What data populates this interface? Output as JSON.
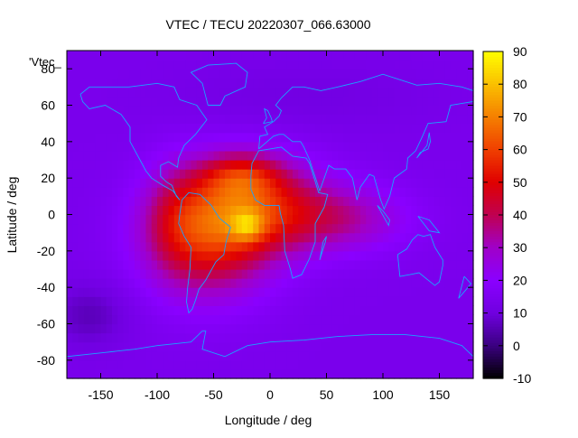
{
  "chart_data": {
    "type": "heatmap",
    "title": "VTEC / TECU 20220307_066.63000",
    "xlabel": "Longitude / deg",
    "ylabel": "Latitude / deg",
    "key_label": "'Vtec_",
    "xlim": [
      -180,
      180
    ],
    "ylim": [
      -90,
      90
    ],
    "x_ticks": [
      -150,
      -100,
      -50,
      0,
      50,
      100,
      150
    ],
    "y_ticks": [
      -80,
      -60,
      -40,
      -20,
      0,
      20,
      40,
      60,
      80
    ],
    "colorbar": {
      "min": -10,
      "max": 90,
      "ticks": [
        -10,
        0,
        10,
        20,
        30,
        40,
        50,
        60,
        70,
        80,
        90
      ],
      "palette": [
        "#000000",
        "#3a0080",
        "#7000e0",
        "#8a00ff",
        "#a000c8",
        "#c00050",
        "#e00000",
        "#f04000",
        "#f58000",
        "#fac000",
        "#ffff00"
      ]
    },
    "field": {
      "background": 14,
      "features": [
        {
          "lon": -55,
          "lat": -12,
          "rlon": 55,
          "rlat": 32,
          "amp": 36
        },
        {
          "lon": -15,
          "lat": 5,
          "rlon": 60,
          "rlat": 25,
          "amp": 32
        },
        {
          "lon": -25,
          "lat": 22,
          "rlon": 35,
          "rlat": 12,
          "amp": 20
        },
        {
          "lon": 60,
          "lat": -2,
          "rlon": 60,
          "rlat": 18,
          "amp": 18
        },
        {
          "lon": -20,
          "lat": -6,
          "rlon": 14,
          "rlat": 8,
          "amp": 20
        },
        {
          "lon": -85,
          "lat": 0,
          "rlon": 25,
          "rlat": 30,
          "amp": 8
        },
        {
          "lon": -160,
          "lat": -55,
          "rlon": 35,
          "rlat": 18,
          "amp": -8
        },
        {
          "lon": 30,
          "lat": 65,
          "rlon": 120,
          "rlat": 18,
          "amp": -3
        }
      ]
    },
    "overlay": "coastlines",
    "overlay_color": "#1aa3ff",
    "grid": false,
    "legend": "top-left"
  }
}
